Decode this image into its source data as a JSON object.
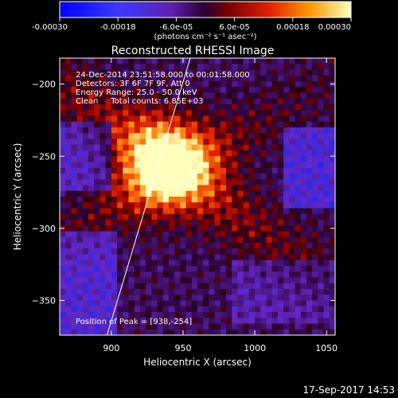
{
  "colorbar": {
    "tick_labels": [
      "-0.00030",
      "-0.00018",
      "-6.0e-05",
      "6.0e-05",
      "0.00018",
      "0.00030"
    ],
    "range": [
      -0.0003,
      0.0003
    ],
    "units_label": "(photons cm⁻² s⁻¹ asec⁻²)"
  },
  "chart_data": {
    "type": "heatmap",
    "title": "Reconstructed RHESSI Image",
    "xlabel": "Heliocentric X (arcsec)",
    "ylabel": "Heliocentric Y (arcsec)",
    "xlim": [
      864,
      1056
    ],
    "ylim": [
      -374,
      -182
    ],
    "x_ticks": [
      900,
      950,
      1000,
      1050
    ],
    "y_ticks": [
      -350,
      -300,
      -250,
      -200
    ],
    "x_tick_labels": [
      "900",
      "950",
      "1000",
      "1050"
    ],
    "y_tick_labels": [
      "−350",
      "−300",
      "−250",
      "−200"
    ],
    "annotations": [
      "24-Dec-2014 23:51:58.000 to 00:01:58.000",
      "Detectors: 3F 6F 7F 9F, Att 0",
      "Energy Range: 25.0 - 50.0 keV",
      "Clean     Total counts: 6.85E+03"
    ],
    "peak_label": "Position of Peak = [938,-254]",
    "peak": [
      938,
      -254
    ],
    "limb_line": [
      [
        897,
        -374
      ],
      [
        955,
        -182
      ]
    ],
    "colormap": "hot"
  },
  "footer": {
    "timestamp": "17-Sep-2017 14:53"
  }
}
